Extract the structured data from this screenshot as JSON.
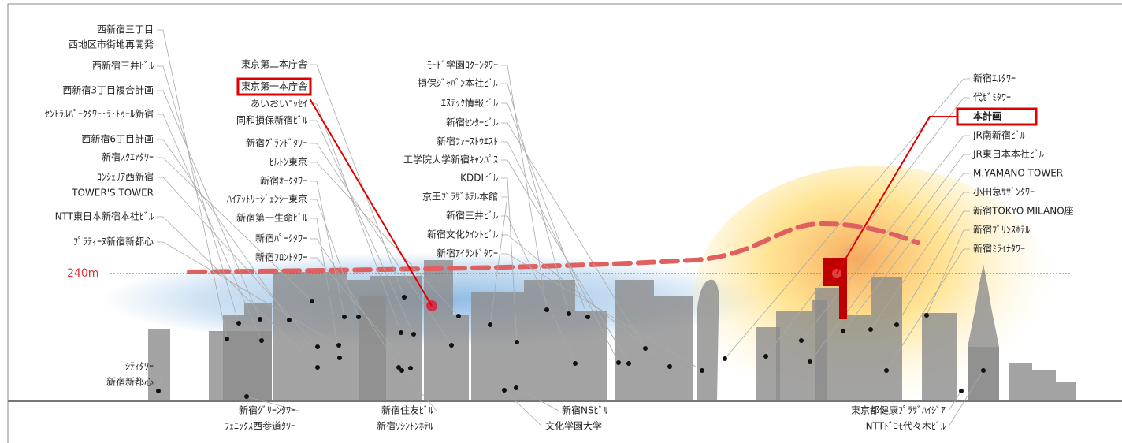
{
  "left_labels": [
    "西新宿三丁目",
    "西地区市街地再開発",
    "西新宿三井ﾋﾞﾙ",
    "西新宿3丁目複合計画",
    "ｾﾝﾄﾗﾙﾊﾟｰｸﾀﾜｰ･ﾗ･ﾄｩｰﾙ新宿",
    "西新宿6丁目計画",
    "新宿ｽｸｴｱﾀﾜｰ",
    "ｺﾝｼｪﾘｱ西新宿",
    "TOWER'S TOWER",
    "NTT東日本新宿本社ﾋﾞﾙ",
    "ﾌﾟﾗﾃｨｰﾇ新宿新都心",
    "ｼﾃｨﾀﾜｰ",
    "新宿新都心"
  ],
  "center_left_labels": [
    "東京第二本庁舎",
    "東京第一本庁舎",
    "あいおいﾆｯｾｲ",
    "同和損保新宿ﾋﾞﾙ",
    "新宿ｸﾞﾗﾝﾄﾞﾀﾜｰ",
    "ﾋﾙﾄﾝ東京",
    "新宿ｵｰｸﾀﾜｰ",
    "ﾊｲｱｯﾄﾘｰｼﾞｪﾝｼｰ東京",
    "新宿第一生命ﾋﾞﾙ",
    "新宿ﾊﾟｰｸﾀﾜｰ",
    "新宿ﾌﾛﾝﾄﾀﾜｰ"
  ],
  "center_labels": [
    "ﾓｰﾄﾞ学園ｺｸｰﾝﾀﾜｰ",
    "損保ｼﾞｬﾊﾟﾝ本社ﾋﾞﾙ",
    "ｴｽﾃｯｸ情報ﾋﾞﾙ",
    "新宿ｾﾝﾀｰﾋﾞﾙ",
    "新宿ﾌｧｰｽﾄｳｴｽﾄ",
    "工学院大学新宿ｷｬﾝﾊﾟｽ",
    "KDDIﾋﾞﾙ",
    "京王ﾌﾟﾗｻﾞﾎﾃﾙ本館",
    "新宿三井ﾋﾞﾙ",
    "新宿文化ｸｲﾝﾄﾋﾞﾙ",
    "新宿ｱｲﾗﾝﾄﾞﾀﾜｰ"
  ],
  "right_labels": [
    "新宿ｴﾙﾀﾜｰ",
    "代ｾﾞﾐﾀﾜｰ",
    "本計画",
    "JR南新宿ﾋﾞﾙ",
    "JR東日本本社ﾋﾞﾙ",
    "M.YAMANO TOWER",
    "小田急ｻｻﾞﾝﾀﾜｰ",
    "新宿TOKYO MILANO座",
    "新宿ﾌﾟﾘﾝｽﾎﾃﾙ",
    "新宿ﾐﾗｲﾅﾀﾜｰ"
  ],
  "bottom_labels": [
    "新宿ｸﾞﾘｰﾝﾀﾜｰ",
    "ﾌｪﾆｯｸｽ西参道ﾀﾜｰ",
    "新宿住友ﾋﾞﾙ",
    "新宿ﾜｼﾝﾄﾝﾎﾃﾙ",
    "新宿NSﾋﾞﾙ",
    "文化学園大学",
    "東京都健康ﾌﾟﾗｻﾞﾊｲｼﾞｱ",
    "NTTﾄﾞｺﾓ代々木ﾋﾞﾙ"
  ],
  "height_label": "240m"
}
